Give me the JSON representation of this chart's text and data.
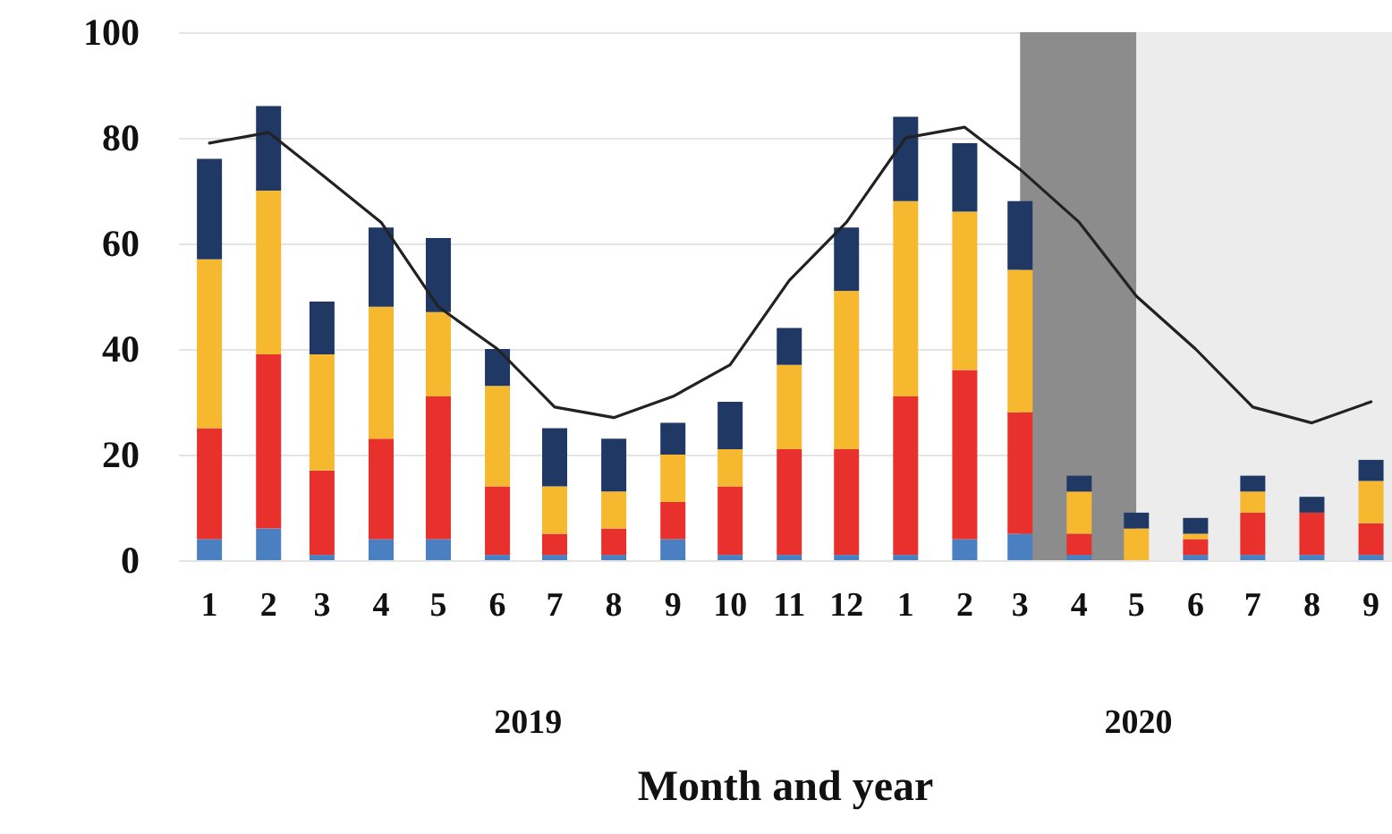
{
  "chart_data": {
    "type": "bar",
    "stacked": true,
    "xlabel": "Month and year",
    "x": [
      "2019-01",
      "2019-02",
      "2019-03",
      "2019-04",
      "2019-05",
      "2019-06",
      "2019-07",
      "2019-08",
      "2019-09",
      "2019-10",
      "2019-11",
      "2019-12",
      "2020-01",
      "2020-02",
      "2020-03",
      "2020-04",
      "2020-05",
      "2020-06",
      "2020-07",
      "2020-08",
      "2020-09"
    ],
    "xlim": [
      "2018-12-16",
      "2020-09-12"
    ],
    "xticks": [
      {
        "value": "2019-01",
        "label": "1"
      },
      {
        "value": "2019-02",
        "label": "2"
      },
      {
        "value": "2019-03",
        "label": "3"
      },
      {
        "value": "2019-04",
        "label": "4"
      },
      {
        "value": "2019-05",
        "label": "5"
      },
      {
        "value": "2019-06",
        "label": "6"
      },
      {
        "value": "2019-07",
        "label": "7"
      },
      {
        "value": "2019-08",
        "label": "8"
      },
      {
        "value": "2019-09",
        "label": "9"
      },
      {
        "value": "2019-10",
        "label": "10"
      },
      {
        "value": "2019-11",
        "label": "11"
      },
      {
        "value": "2019-12",
        "label": "12"
      },
      {
        "value": "2020-01",
        "label": "1"
      },
      {
        "value": "2020-02",
        "label": "2"
      },
      {
        "value": "2020-03",
        "label": "3"
      },
      {
        "value": "2020-04",
        "label": "4"
      },
      {
        "value": "2020-05",
        "label": "5"
      },
      {
        "value": "2020-06",
        "label": "6"
      },
      {
        "value": "2020-07",
        "label": "7"
      },
      {
        "value": "2020-08",
        "label": "8"
      },
      {
        "value": "2020-09",
        "label": "9"
      }
    ],
    "ylim": [
      0,
      100
    ],
    "yticks": [
      0,
      20,
      40,
      60,
      80,
      100
    ],
    "grid": "y",
    "series": [
      {
        "color": "#4a7fc1",
        "values": [
          4,
          6,
          1,
          4,
          4,
          1,
          1,
          1,
          4,
          1,
          1,
          1,
          1,
          4,
          5,
          1,
          0,
          1,
          1,
          1,
          1
        ]
      },
      {
        "color": "#e8302c",
        "values": [
          21,
          33,
          16,
          19,
          27,
          13,
          4,
          5,
          7,
          13,
          20,
          20,
          30,
          32,
          23,
          4,
          0,
          3,
          8,
          8,
          6
        ]
      },
      {
        "color": "#f5b82e",
        "values": [
          32,
          31,
          22,
          25,
          16,
          19,
          9,
          7,
          9,
          7,
          16,
          30,
          37,
          30,
          27,
          8,
          6,
          1,
          4,
          0,
          8
        ]
      },
      {
        "color": "#1f3864",
        "values": [
          19,
          16,
          10,
          15,
          14,
          7,
          11,
          10,
          6,
          9,
          7,
          12,
          16,
          13,
          13,
          3,
          3,
          3,
          3,
          3,
          4
        ]
      },
      {
        "type": "line",
        "color": "#222222",
        "marker": "none",
        "values": [
          79,
          81,
          73,
          64,
          48,
          40,
          29,
          27,
          31,
          37,
          53,
          64,
          80,
          82,
          74,
          64,
          50,
          40,
          29,
          26,
          30
        ]
      }
    ],
    "bands": [
      {
        "axis": "x",
        "from": "2020-03",
        "to": "2020-05",
        "color": "#8c8c8c"
      },
      {
        "axis": "x",
        "from": "2020-05",
        "to": "2020-09-12",
        "color": "#ececec"
      }
    ],
    "annotations": [
      "2019",
      "2020"
    ]
  }
}
